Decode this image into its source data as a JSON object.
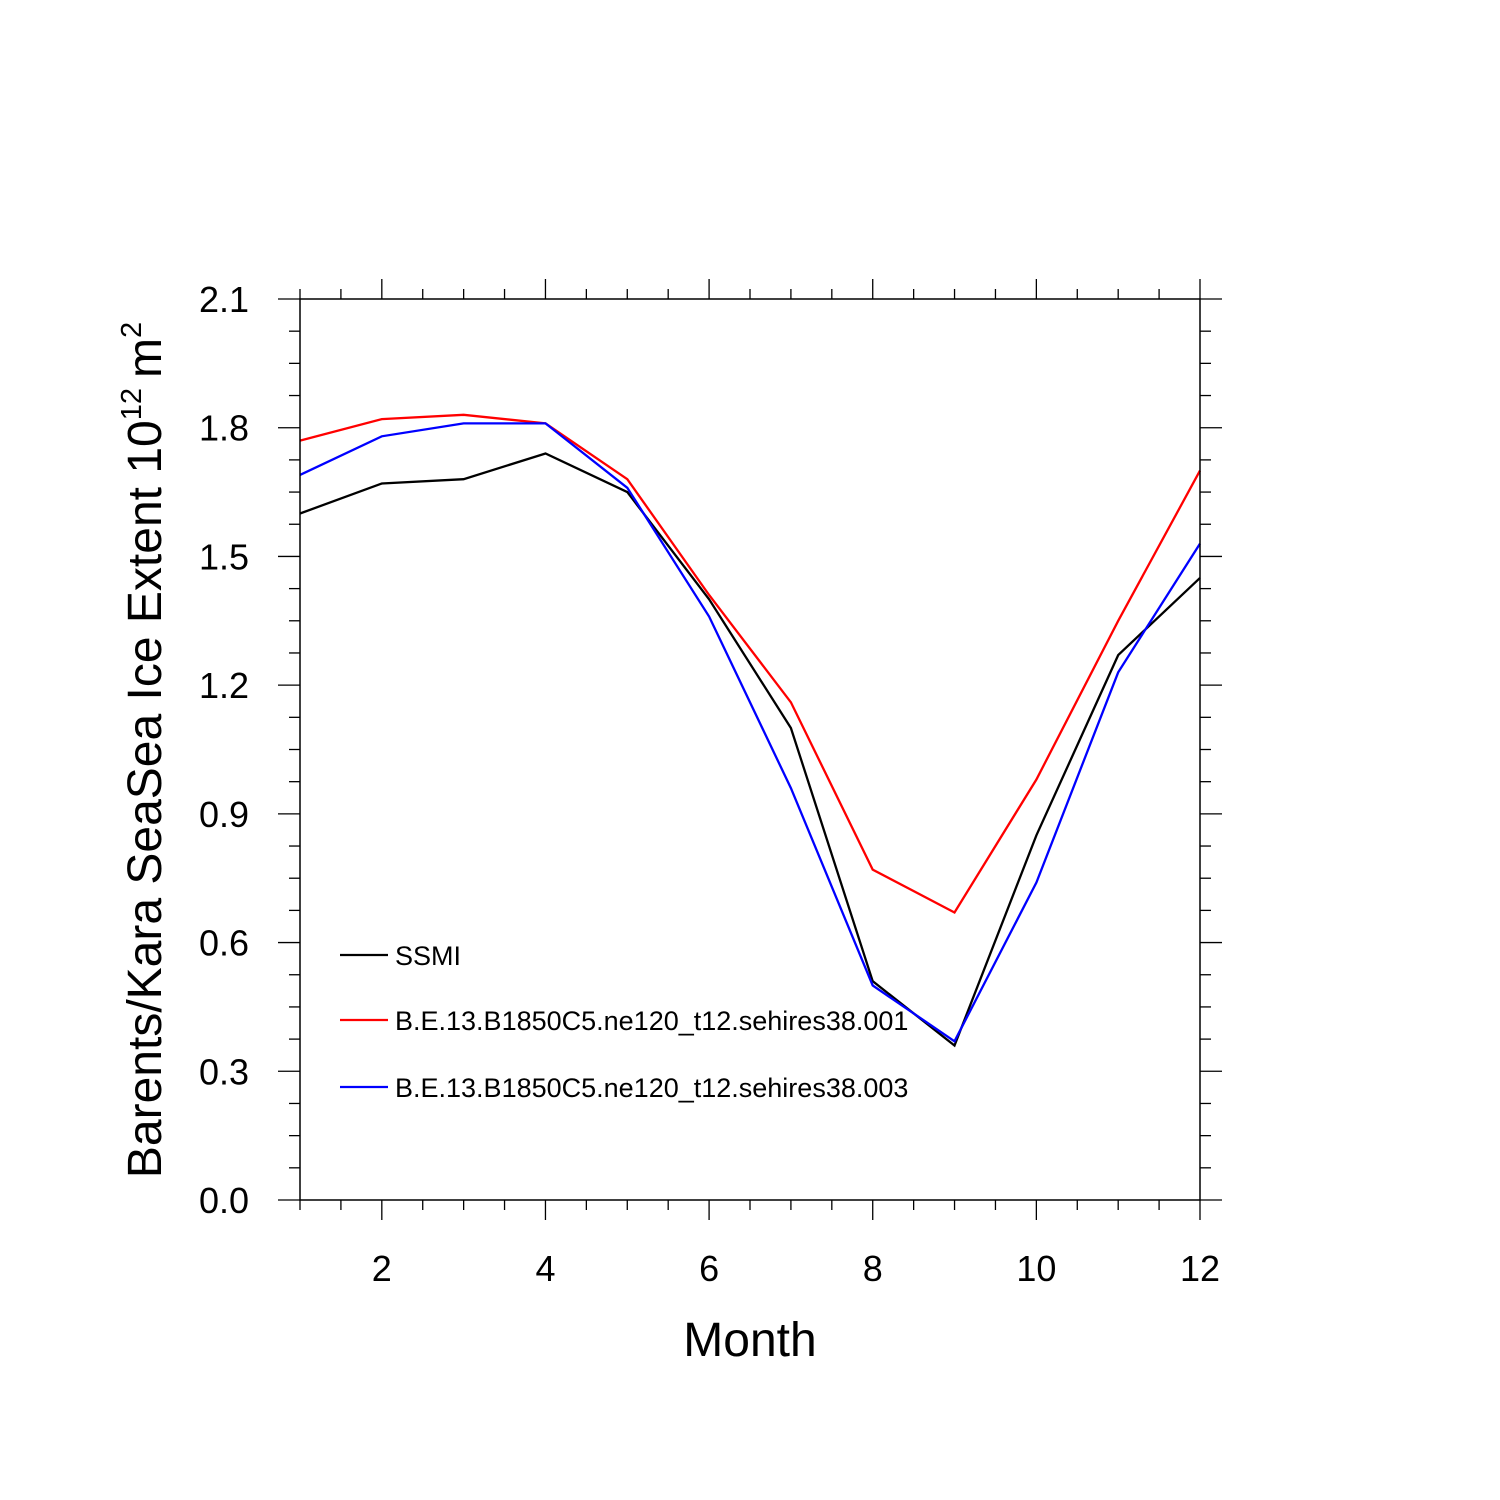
{
  "chart_data": {
    "type": "line",
    "title": "",
    "xlabel": "Month",
    "ylabel": "Barents/Kara SeaSea Ice Extent 10",
    "ylabel_exponent": "12",
    "ylabel_unit": "m",
    "ylabel_unit_exponent": "2",
    "x": [
      1,
      2,
      3,
      4,
      5,
      6,
      7,
      8,
      9,
      10,
      11,
      12
    ],
    "xlim": [
      1,
      12
    ],
    "ylim": [
      0.0,
      2.1
    ],
    "xticks": [
      2,
      4,
      6,
      8,
      10,
      12
    ],
    "xtick_labels": [
      "2",
      "4",
      "6",
      "8",
      "10",
      "12"
    ],
    "yticks": [
      0.0,
      0.3,
      0.6,
      0.9,
      1.2,
      1.5,
      1.8,
      2.1
    ],
    "ytick_labels": [
      "0.0",
      "0.3",
      "0.6",
      "0.9",
      "1.2",
      "1.5",
      "1.8",
      "2.1"
    ],
    "grid": false,
    "legend_position": "bottom-left",
    "series": [
      {
        "name": "SSMI",
        "color": "#000000",
        "values": [
          1.6,
          1.67,
          1.68,
          1.74,
          1.65,
          1.4,
          1.1,
          0.51,
          0.36,
          0.85,
          1.27,
          1.45
        ]
      },
      {
        "name": "B.E.13.B1850C5.ne120_t12.sehires38.001",
        "color": "#ff0000",
        "values": [
          1.77,
          1.82,
          1.83,
          1.81,
          1.68,
          1.41,
          1.16,
          0.77,
          0.67,
          0.98,
          1.35,
          1.7
        ]
      },
      {
        "name": "B.E.13.B1850C5.ne120_t12.sehires38.003",
        "color": "#0000ff",
        "values": [
          1.69,
          1.78,
          1.81,
          1.81,
          1.66,
          1.36,
          0.96,
          0.5,
          0.37,
          0.74,
          1.23,
          1.53
        ]
      }
    ]
  }
}
